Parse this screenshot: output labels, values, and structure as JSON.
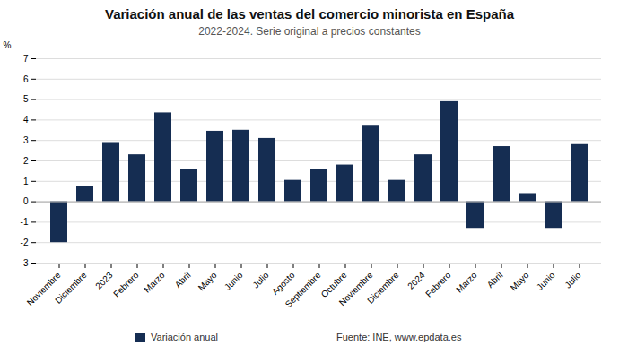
{
  "chart_data": {
    "type": "bar",
    "title": "Variación anual de las ventas del comercio minorista en España",
    "subtitle": "2022-2024. Serie original a precios constantes",
    "ylabel": "%",
    "categories": [
      "Noviembre",
      "Diciembre",
      "2023",
      "Febrero",
      "Marzo",
      "Abril",
      "Mayo",
      "Junio",
      "Julio",
      "Agosto",
      "Septiembre",
      "Octubre",
      "Noviembre",
      "Diciembre",
      "2024",
      "Febrero",
      "Marzo",
      "Abril",
      "Mayo",
      "Junio",
      "Julio"
    ],
    "series": [
      {
        "name": "Variación anual",
        "color": "#152d52",
        "values": [
          -2.0,
          0.75,
          2.9,
          2.3,
          4.35,
          1.6,
          3.45,
          3.5,
          3.1,
          1.05,
          1.6,
          1.8,
          3.7,
          1.05,
          2.3,
          4.9,
          -1.3,
          2.7,
          0.4,
          -1.3,
          2.8
        ]
      }
    ],
    "ylim": [
      -3,
      7
    ],
    "yticks": [
      -3,
      -2,
      -1,
      0,
      1,
      2,
      3,
      4,
      5,
      6,
      7
    ],
    "grid": true,
    "legend": "bottom",
    "source": "Fuente: INE, www.epdata.es"
  }
}
